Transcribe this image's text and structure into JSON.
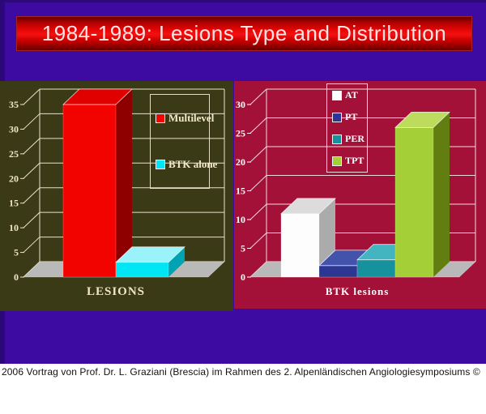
{
  "slide": {
    "title": "1984-1989: Lesions Type and Distribution",
    "footer": "2006 Vortrag von Prof. Dr. L. Graziani (Brescia) im Rahmen des 2. Alpenländischen Angiologiesymposiums ©",
    "colors": {
      "background": "#3E0BA2",
      "background_border": "#2C0878",
      "title_bar_red": "#E90606",
      "title_text": "#FFE2E2",
      "footer_background": "#FFFFFF",
      "footer_text": "#111111"
    }
  },
  "chart_data": [
    {
      "type": "bar",
      "style": "3d-column",
      "title": "",
      "xlabel": "LESIONS",
      "ylabel": "",
      "ylim": [
        0,
        35
      ],
      "yticks": [
        0,
        5,
        10,
        15,
        20,
        25,
        30,
        35
      ],
      "grid": true,
      "legend_position": "right",
      "background": "#3B3A16",
      "text_color": "#F0E6C6",
      "grid_color": "#E9E2CC",
      "floor_color": "#B9B9B9",
      "categories": [
        "LESIONS"
      ],
      "series": [
        {
          "name": "Multilevel",
          "value": 35,
          "color": "#F20300",
          "color_top": "#E00000",
          "color_side": "#8E0000"
        },
        {
          "name": "BTK alone",
          "value": 3,
          "color": "#00E6F4",
          "color_top": "#9AF3FB",
          "color_side": "#00A3B2"
        }
      ]
    },
    {
      "type": "bar",
      "style": "3d-column",
      "title": "",
      "xlabel": "BTK lesions",
      "ylabel": "",
      "ylim": [
        0,
        30
      ],
      "yticks": [
        0,
        5,
        10,
        15,
        20,
        25,
        30
      ],
      "grid": true,
      "legend_position": "top",
      "background": "#A31138",
      "text_color": "#FFFFFF",
      "grid_color": "#EFD9DC",
      "floor_color": "#B9B9B9",
      "categories": [
        "BTK lesions"
      ],
      "series": [
        {
          "name": "AT",
          "value": 11,
          "color": "#FDFDFD",
          "color_top": "#DCDCDC",
          "color_side": "#ABABAB"
        },
        {
          "name": "PT",
          "value": 2,
          "color": "#2B3793",
          "color_top": "#4352AB",
          "color_side": "#1C2465"
        },
        {
          "name": "PER",
          "value": 3,
          "color": "#16919E",
          "color_top": "#43B5C0",
          "color_side": "#0D606A"
        },
        {
          "name": "TPT",
          "value": 26,
          "color": "#A5CF36",
          "color_top": "#BDDC5E",
          "color_side": "#627E10"
        }
      ]
    }
  ]
}
